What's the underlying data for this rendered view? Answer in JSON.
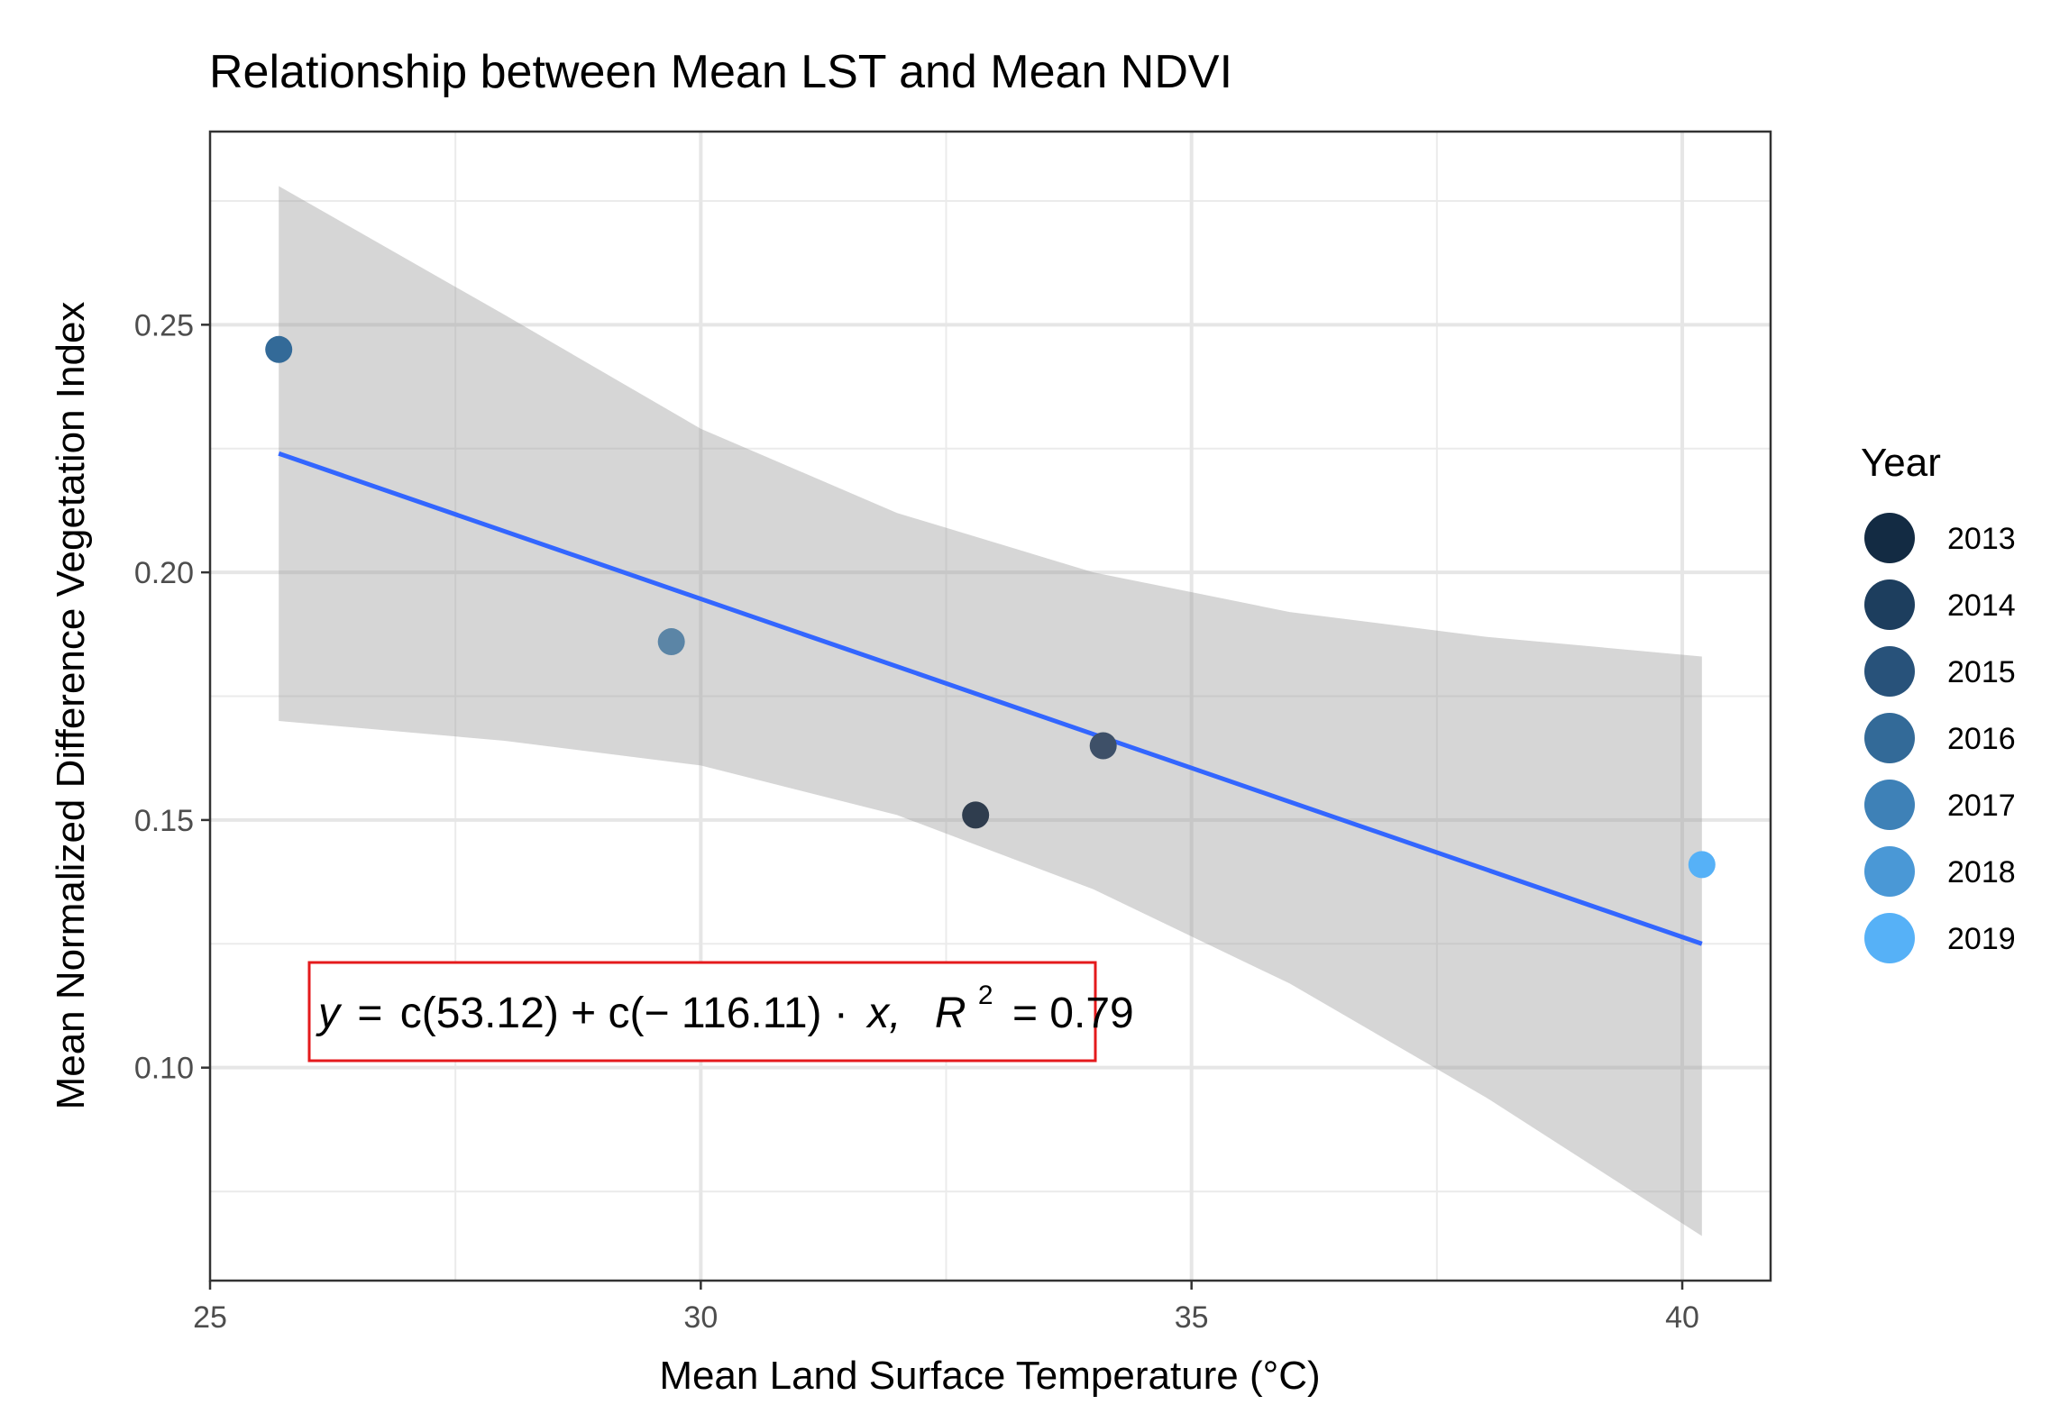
{
  "chart_data": {
    "type": "scatter",
    "title": "Relationship between Mean LST and Mean NDVI",
    "xlabel": "Mean Land Surface Temperature (°C)",
    "ylabel": "Mean Normalized Difference Vegetation Index",
    "xlim": [
      25,
      40.9
    ],
    "ylim": [
      0.057,
      0.289
    ],
    "x_ticks": [
      "25",
      "30",
      "35",
      "40"
    ],
    "y_ticks": [
      "0.10",
      "0.15",
      "0.20",
      "0.25"
    ],
    "grid": true,
    "legend": {
      "title": "Year",
      "position": "right",
      "entries": [
        {
          "label": "2013",
          "color": "#132B43"
        },
        {
          "label": "2014",
          "color": "#1D3E5E"
        },
        {
          "label": "2015",
          "color": "#28527A"
        },
        {
          "label": "2016",
          "color": "#336A98"
        },
        {
          "label": "2017",
          "color": "#3E81B7"
        },
        {
          "label": "2018",
          "color": "#4A98D6"
        },
        {
          "label": "2019",
          "color": "#56B1F7"
        }
      ]
    },
    "points": [
      {
        "x": 25.7,
        "y": 0.245,
        "year": "2016",
        "color": "#336A98"
      },
      {
        "x": 29.7,
        "y": 0.186,
        "year": "2017",
        "color": "#5B85A6"
      },
      {
        "x": 32.8,
        "y": 0.151,
        "year": "2013",
        "color": "#2F3D4E"
      },
      {
        "x": 34.1,
        "y": 0.165,
        "year": "2014",
        "color": "#3E5068"
      },
      {
        "x": 40.2,
        "y": 0.141,
        "year": "2019",
        "color": "#56B1F7"
      }
    ],
    "fit_line": {
      "color": "#3366FF",
      "x_start": 25.7,
      "x_end": 40.2,
      "y_start": 0.224,
      "y_end": 0.125
    },
    "confidence_band": {
      "color": "#999999",
      "x": [
        25.7,
        28,
        30,
        32,
        34,
        36,
        38,
        40.2
      ],
      "upper": [
        0.278,
        0.252,
        0.229,
        0.212,
        0.2,
        0.192,
        0.187,
        0.183
      ],
      "lower": [
        0.17,
        0.166,
        0.161,
        0.151,
        0.136,
        0.117,
        0.094,
        0.066
      ]
    },
    "annotation": {
      "y_var": "y",
      "eq_sign": "=",
      "rhs": "c(53.12) + c(− 116.11) ·",
      "x_var": "x,",
      "r_var": "R",
      "r_exp": "2",
      "r_value": "= 0.79",
      "border_color": "#E41A1C"
    }
  }
}
